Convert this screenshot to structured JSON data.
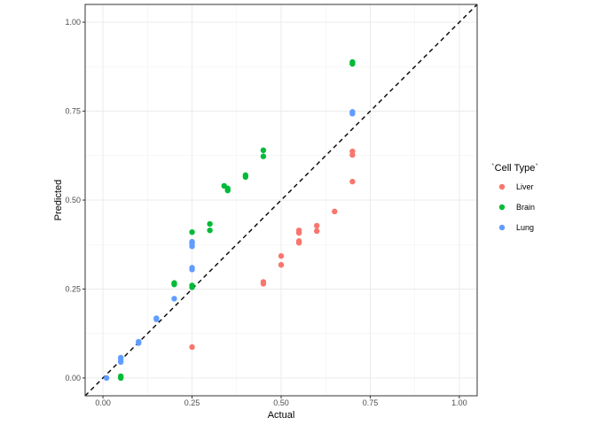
{
  "chart_data": {
    "type": "scatter",
    "xlabel": "Actual",
    "ylabel": "Predicted",
    "xlim": [
      -0.05,
      1.05
    ],
    "ylim": [
      -0.05,
      1.05
    ],
    "x_ticks": [
      "0.00",
      "0.25",
      "0.50",
      "0.75",
      "1.00"
    ],
    "y_ticks": [
      "0.00",
      "0.25",
      "0.50",
      "0.75",
      "1.00"
    ],
    "grid": true,
    "reference_line": {
      "type": "identity",
      "style": "dashed",
      "color": "#000000"
    },
    "legend": {
      "title": "`Cell Type`",
      "placement": "right",
      "entries": [
        {
          "name": "Liver",
          "color": "#F8766D"
        },
        {
          "name": "Brain",
          "color": "#00BA38"
        },
        {
          "name": "Lung",
          "color": "#619CFF"
        }
      ]
    },
    "series": [
      {
        "name": "Liver",
        "color": "#F8766D",
        "points": [
          [
            0.25,
            0.087
          ],
          [
            0.45,
            0.265
          ],
          [
            0.45,
            0.27
          ],
          [
            0.5,
            0.318
          ],
          [
            0.5,
            0.343
          ],
          [
            0.55,
            0.38
          ],
          [
            0.55,
            0.385
          ],
          [
            0.55,
            0.408
          ],
          [
            0.55,
            0.415
          ],
          [
            0.6,
            0.413
          ],
          [
            0.6,
            0.428
          ],
          [
            0.65,
            0.468
          ],
          [
            0.7,
            0.552
          ],
          [
            0.7,
            0.627
          ],
          [
            0.7,
            0.637
          ]
        ]
      },
      {
        "name": "Brain",
        "color": "#00BA38",
        "points": [
          [
            0.05,
            0.0
          ],
          [
            0.05,
            0.005
          ],
          [
            0.2,
            0.263
          ],
          [
            0.2,
            0.267
          ],
          [
            0.25,
            0.255
          ],
          [
            0.25,
            0.26
          ],
          [
            0.25,
            0.41
          ],
          [
            0.3,
            0.415
          ],
          [
            0.3,
            0.433
          ],
          [
            0.34,
            0.54
          ],
          [
            0.35,
            0.527
          ],
          [
            0.35,
            0.533
          ],
          [
            0.4,
            0.565
          ],
          [
            0.4,
            0.57
          ],
          [
            0.45,
            0.623
          ],
          [
            0.45,
            0.64
          ],
          [
            0.7,
            0.883
          ],
          [
            0.7,
            0.888
          ]
        ]
      },
      {
        "name": "Lung",
        "color": "#619CFF",
        "points": [
          [
            0.01,
            0.0
          ],
          [
            0.05,
            0.045
          ],
          [
            0.05,
            0.05
          ],
          [
            0.05,
            0.057
          ],
          [
            0.1,
            0.098
          ],
          [
            0.1,
            0.102
          ],
          [
            0.15,
            0.165
          ],
          [
            0.15,
            0.168
          ],
          [
            0.2,
            0.223
          ],
          [
            0.25,
            0.305
          ],
          [
            0.25,
            0.31
          ],
          [
            0.25,
            0.37
          ],
          [
            0.25,
            0.378
          ],
          [
            0.25,
            0.383
          ],
          [
            0.7,
            0.743
          ],
          [
            0.7,
            0.748
          ]
        ]
      }
    ]
  }
}
